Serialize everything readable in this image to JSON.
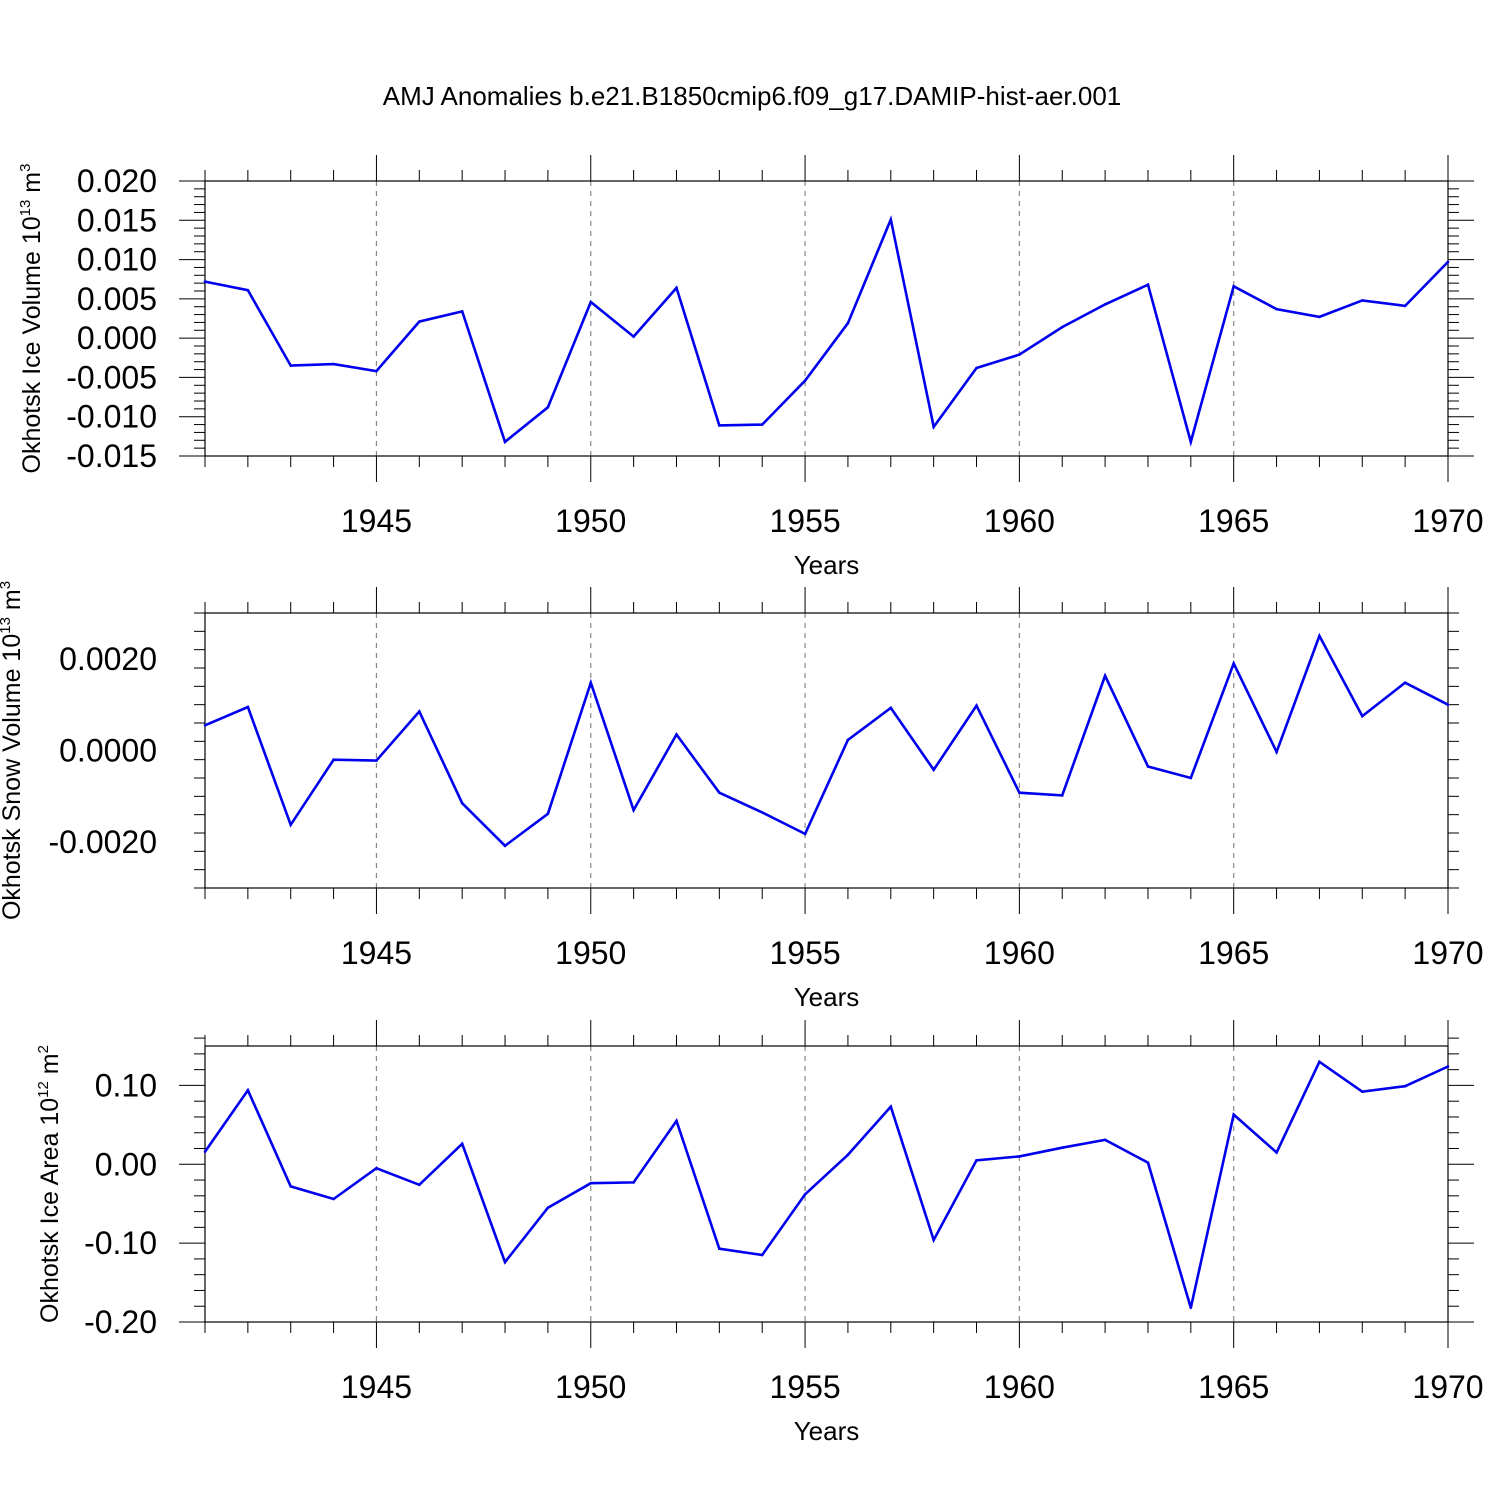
{
  "title": "AMJ Anomalies b.e21.B1850cmip6.f09_g17.DAMIP-hist-aer.001",
  "chart_data": [
    {
      "type": "line",
      "id": "ice-volume",
      "xlabel": "Years",
      "ylabel_prefix": "Okhotsk Ice Volume 10",
      "ylabel_exp": "13",
      "ylabel_unit": " m",
      "ylabel_unit_exp": "3",
      "xlim": [
        1941,
        1970
      ],
      "ylim": [
        -0.015,
        0.02
      ],
      "yticks": [
        -0.015,
        -0.01,
        -0.005,
        0.0,
        0.005,
        0.01,
        0.015,
        0.02
      ],
      "ytick_labels": [
        "-0.015",
        "-0.010",
        "-0.005",
        "0.000",
        "0.005",
        "0.010",
        "0.015",
        "0.020"
      ],
      "xticks": [
        1945,
        1950,
        1955,
        1960,
        1965,
        1970
      ],
      "xtick_labels": [
        "1945",
        "1950",
        "1955",
        "1960",
        "1965",
        "1970"
      ],
      "color": "#0000ee",
      "x": [
        1941,
        1942,
        1943,
        1944,
        1945,
        1946,
        1947,
        1948,
        1949,
        1950,
        1951,
        1952,
        1953,
        1954,
        1955,
        1956,
        1957,
        1958,
        1959,
        1960,
        1961,
        1962,
        1963,
        1964,
        1965,
        1966,
        1967,
        1968,
        1969,
        1970
      ],
      "y": [
        0.0072,
        0.0061,
        -0.0035,
        -0.0033,
        -0.0042,
        0.0021,
        0.0034,
        -0.0132,
        -0.0088,
        0.0046,
        0.0002,
        0.0064,
        -0.0111,
        -0.011,
        -0.0054,
        0.0019,
        0.0151,
        -0.0113,
        -0.0038,
        -0.0021,
        0.0014,
        0.0043,
        0.0068,
        -0.0132,
        0.0066,
        0.0037,
        0.0027,
        0.0048,
        0.0041,
        0.0097
      ]
    },
    {
      "type": "line",
      "id": "snow-volume",
      "xlabel": "Years",
      "ylabel_prefix": "Okhotsk Snow Volume 10",
      "ylabel_exp": "13",
      "ylabel_unit": " m",
      "ylabel_unit_exp": "3",
      "xlim": [
        1941,
        1970
      ],
      "ylim": [
        -0.003,
        0.003
      ],
      "yticks": [
        -0.002,
        0.0,
        0.002
      ],
      "ytick_labels": [
        "-0.0020",
        "0.0000",
        "0.0020"
      ],
      "xticks": [
        1945,
        1950,
        1955,
        1960,
        1965,
        1970
      ],
      "xtick_labels": [
        "1945",
        "1950",
        "1955",
        "1960",
        "1965",
        "1970"
      ],
      "color": "#0000ee",
      "x": [
        1941,
        1942,
        1943,
        1944,
        1945,
        1946,
        1947,
        1948,
        1949,
        1950,
        1951,
        1952,
        1953,
        1954,
        1955,
        1956,
        1957,
        1958,
        1959,
        1960,
        1961,
        1962,
        1963,
        1964,
        1965,
        1966,
        1967,
        1968,
        1969,
        1970
      ],
      "y": [
        0.00055,
        0.00095,
        -0.00162,
        -0.0002,
        -0.00022,
        0.00085,
        -0.00115,
        -0.00208,
        -0.00138,
        0.00148,
        -0.0013,
        0.00035,
        -0.00092,
        -0.00135,
        -0.00182,
        0.00023,
        0.00093,
        -0.00042,
        0.00098,
        -0.00092,
        -0.00098,
        0.00163,
        -0.00035,
        -0.0006,
        0.0019,
        -3e-05,
        0.0025,
        0.00075,
        0.00148,
        0.001
      ]
    },
    {
      "type": "line",
      "id": "ice-area",
      "xlabel": "Years",
      "ylabel_prefix": "Okhotsk Ice Area 10",
      "ylabel_exp": "12",
      "ylabel_unit": " m",
      "ylabel_unit_exp": "2",
      "xlim": [
        1941,
        1970
      ],
      "ylim": [
        -0.2,
        0.15
      ],
      "yticks": [
        -0.2,
        -0.1,
        0.0,
        0.1
      ],
      "ytick_labels": [
        "-0.20",
        "-0.10",
        "0.00",
        "0.10"
      ],
      "xticks": [
        1945,
        1950,
        1955,
        1960,
        1965,
        1970
      ],
      "xtick_labels": [
        "1945",
        "1950",
        "1955",
        "1960",
        "1965",
        "1970"
      ],
      "color": "#0000ee",
      "x": [
        1941,
        1942,
        1943,
        1944,
        1945,
        1946,
        1947,
        1948,
        1949,
        1950,
        1951,
        1952,
        1953,
        1954,
        1955,
        1956,
        1957,
        1958,
        1959,
        1960,
        1961,
        1962,
        1963,
        1964,
        1965,
        1966,
        1967,
        1968,
        1969,
        1970
      ],
      "y": [
        0.016,
        0.094,
        -0.028,
        -0.044,
        -0.005,
        -0.026,
        0.026,
        -0.124,
        -0.055,
        -0.024,
        -0.023,
        0.055,
        -0.107,
        -0.115,
        -0.038,
        0.012,
        0.073,
        -0.096,
        0.005,
        0.01,
        0.021,
        0.031,
        0.002,
        -0.182,
        0.063,
        0.015,
        0.13,
        0.092,
        0.099,
        0.124
      ]
    }
  ]
}
